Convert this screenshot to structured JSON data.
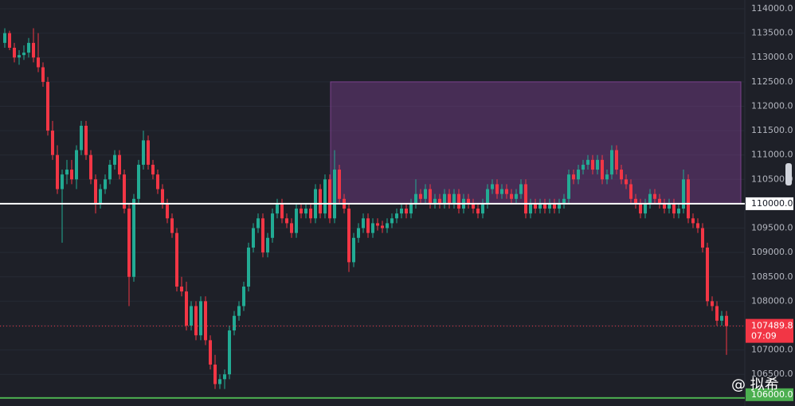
{
  "chart_data": {
    "type": "candlestick",
    "ylim": [
      105850,
      114180
    ],
    "yticks": [
      {
        "value": 106500,
        "label": "106500.0"
      },
      {
        "value": 107000,
        "label": "107000.0"
      },
      {
        "value": 107500,
        "label": "107500.0"
      },
      {
        "value": 108000,
        "label": "108000.0"
      },
      {
        "value": 108500,
        "label": "108500.0"
      },
      {
        "value": 109000,
        "label": "109000.0"
      },
      {
        "value": 109500,
        "label": "109500.0"
      },
      {
        "value": 110500,
        "label": "110500.0"
      },
      {
        "value": 111000,
        "label": "111000.0"
      },
      {
        "value": 111500,
        "label": "111500.0"
      },
      {
        "value": 112000,
        "label": "112000.0"
      },
      {
        "value": 112500,
        "label": "112500.0"
      },
      {
        "value": 113000,
        "label": "113000.0"
      },
      {
        "value": 113500,
        "label": "113500.0"
      },
      {
        "value": 114000,
        "label": "114000.0"
      }
    ],
    "grid": true,
    "up_color": "#22ab94",
    "down_color": "#f23645",
    "zone": {
      "top": 112500,
      "bottom": 110000,
      "color": "#7b3f8c"
    },
    "level_line": {
      "value": 110000,
      "label": "110000.0",
      "color": "#ffffff"
    },
    "support_line": {
      "value": 106000,
      "label": "106000.0",
      "color": "#4caf50"
    },
    "price_line": {
      "value": 107489.8,
      "countdown": "07:09",
      "color": "#f23645"
    },
    "watermark": "@ 拟希",
    "candles": [
      [
        113300,
        113600,
        113200,
        113500
      ],
      [
        113500,
        113550,
        113150,
        113200
      ],
      [
        113200,
        113300,
        112900,
        113000
      ],
      [
        113000,
        113150,
        112850,
        113050
      ],
      [
        113050,
        113250,
        112950,
        113100
      ],
      [
        113100,
        113400,
        113000,
        113300
      ],
      [
        113300,
        113600,
        112900,
        113000
      ],
      [
        113000,
        113500,
        112700,
        112800
      ],
      [
        112800,
        112900,
        112400,
        112500
      ],
      [
        112500,
        112600,
        111400,
        111500
      ],
      [
        111500,
        111700,
        110900,
        111000
      ],
      [
        111000,
        111200,
        110200,
        110300
      ],
      [
        110300,
        110700,
        109200,
        110600
      ],
      [
        110600,
        110900,
        110400,
        110700
      ],
      [
        110700,
        110900,
        110400,
        110500
      ],
      [
        110500,
        111200,
        110300,
        111100
      ],
      [
        111100,
        111700,
        111000,
        111600
      ],
      [
        111600,
        111700,
        110900,
        111000
      ],
      [
        111000,
        111100,
        110400,
        110500
      ],
      [
        110500,
        110600,
        109800,
        110000
      ],
      [
        110000,
        110400,
        109900,
        110300
      ],
      [
        110300,
        110600,
        110200,
        110500
      ],
      [
        110500,
        110900,
        110400,
        110800
      ],
      [
        110800,
        111100,
        110700,
        111000
      ],
      [
        111000,
        111100,
        110500,
        110600
      ],
      [
        110600,
        110700,
        109800,
        109900
      ],
      [
        109900,
        110000,
        107900,
        108500
      ],
      [
        108500,
        110200,
        108400,
        110100
      ],
      [
        110100,
        110900,
        110000,
        110800
      ],
      [
        110800,
        111500,
        110700,
        111300
      ],
      [
        111300,
        111400,
        110700,
        110800
      ],
      [
        110800,
        110900,
        110500,
        110600
      ],
      [
        110600,
        110700,
        110200,
        110300
      ],
      [
        110300,
        110400,
        109900,
        110000
      ],
      [
        110000,
        110100,
        109600,
        109700
      ],
      [
        109700,
        109800,
        109300,
        109400
      ],
      [
        109400,
        109500,
        108200,
        108300
      ],
      [
        108300,
        108500,
        108100,
        108200
      ],
      [
        108200,
        108400,
        107400,
        107500
      ],
      [
        107500,
        108000,
        107400,
        107900
      ],
      [
        107900,
        108000,
        107200,
        107300
      ],
      [
        107300,
        108100,
        107200,
        108000
      ],
      [
        108000,
        108100,
        107100,
        107200
      ],
      [
        107200,
        107300,
        106600,
        106700
      ],
      [
        106700,
        106900,
        106200,
        106300
      ],
      [
        106300,
        106500,
        106200,
        106400
      ],
      [
        106400,
        106600,
        106200,
        106500
      ],
      [
        106500,
        107500,
        106400,
        107400
      ],
      [
        107400,
        107800,
        107300,
        107700
      ],
      [
        107700,
        108000,
        107600,
        107900
      ],
      [
        107900,
        108400,
        107800,
        108300
      ],
      [
        108300,
        109200,
        108200,
        109100
      ],
      [
        109100,
        109600,
        109000,
        109500
      ],
      [
        109500,
        109800,
        109400,
        109700
      ],
      [
        109700,
        109800,
        108900,
        109000
      ],
      [
        109000,
        109400,
        108900,
        109300
      ],
      [
        109300,
        109900,
        109200,
        109800
      ],
      [
        109800,
        110100,
        109700,
        110000
      ],
      [
        110000,
        110100,
        109600,
        109700
      ],
      [
        109700,
        109800,
        109500,
        109600
      ],
      [
        109600,
        109700,
        109300,
        109400
      ],
      [
        109400,
        110000,
        109300,
        109900
      ],
      [
        109900,
        110000,
        109700,
        109800
      ],
      [
        109800,
        110000,
        109700,
        109900
      ],
      [
        109900,
        110000,
        109600,
        109700
      ],
      [
        109700,
        110400,
        109600,
        110300
      ],
      [
        110300,
        110400,
        109700,
        109800
      ],
      [
        109800,
        110600,
        109700,
        110500
      ],
      [
        110500,
        110600,
        109600,
        109700
      ],
      [
        109700,
        111100,
        109600,
        110700
      ],
      [
        110700,
        110800,
        110000,
        110100
      ],
      [
        110100,
        110200,
        109800,
        109900
      ],
      [
        109900,
        110000,
        108600,
        108800
      ],
      [
        108800,
        109400,
        108700,
        109300
      ],
      [
        109300,
        109600,
        109200,
        109500
      ],
      [
        109500,
        109800,
        109400,
        109700
      ],
      [
        109700,
        109800,
        109300,
        109400
      ],
      [
        109400,
        109700,
        109300,
        109600
      ],
      [
        109600,
        109700,
        109450,
        109550
      ],
      [
        109550,
        109650,
        109400,
        109500
      ],
      [
        109500,
        109700,
        109400,
        109600
      ],
      [
        109600,
        109800,
        109500,
        109700
      ],
      [
        109700,
        109900,
        109600,
        109800
      ],
      [
        109800,
        110000,
        109700,
        109900
      ],
      [
        109900,
        110000,
        109700,
        109800
      ],
      [
        109800,
        110100,
        109700,
        110000
      ],
      [
        110000,
        110500,
        109900,
        110200
      ],
      [
        110200,
        110300,
        110000,
        110100
      ],
      [
        110100,
        110400,
        110000,
        110300
      ],
      [
        110300,
        110400,
        109900,
        110000
      ],
      [
        110000,
        110200,
        109900,
        110100
      ],
      [
        110100,
        110200,
        109900,
        110000
      ],
      [
        110000,
        110300,
        109900,
        110200
      ],
      [
        110200,
        110300,
        109900,
        110000
      ],
      [
        110000,
        110300,
        109900,
        110200
      ],
      [
        110200,
        110300,
        109800,
        109900
      ],
      [
        109900,
        110200,
        109800,
        110100
      ],
      [
        110100,
        110200,
        109900,
        110000
      ],
      [
        110000,
        110100,
        109800,
        109900
      ],
      [
        109900,
        110000,
        109700,
        109800
      ],
      [
        109800,
        110100,
        109700,
        110000
      ],
      [
        110000,
        110400,
        109900,
        110300
      ],
      [
        110300,
        110500,
        110200,
        110400
      ],
      [
        110400,
        110500,
        110100,
        110200
      ],
      [
        110200,
        110400,
        110100,
        110300
      ],
      [
        110300,
        110400,
        110100,
        110200
      ],
      [
        110200,
        110300,
        110000,
        110100
      ],
      [
        110100,
        110300,
        110000,
        110200
      ],
      [
        110200,
        110500,
        110100,
        110400
      ],
      [
        110400,
        110500,
        109700,
        109800
      ],
      [
        109800,
        110100,
        109700,
        110000
      ],
      [
        110000,
        110100,
        109800,
        109900
      ],
      [
        109900,
        110100,
        109800,
        110000
      ],
      [
        110000,
        110100,
        109800,
        109900
      ],
      [
        109900,
        110100,
        109800,
        110000
      ],
      [
        110000,
        110100,
        109800,
        109900
      ],
      [
        109900,
        110100,
        109800,
        110000
      ],
      [
        110000,
        110200,
        109900,
        110100
      ],
      [
        110100,
        110700,
        110000,
        110600
      ],
      [
        110600,
        110700,
        110400,
        110500
      ],
      [
        110500,
        110800,
        110400,
        110700
      ],
      [
        110700,
        110900,
        110600,
        110800
      ],
      [
        110800,
        111000,
        110700,
        110900
      ],
      [
        110900,
        111000,
        110600,
        110700
      ],
      [
        110700,
        111000,
        110600,
        110900
      ],
      [
        110900,
        111000,
        110400,
        110500
      ],
      [
        110500,
        110700,
        110400,
        110600
      ],
      [
        110600,
        111200,
        110500,
        111100
      ],
      [
        111100,
        111200,
        110600,
        110700
      ],
      [
        110700,
        110800,
        110400,
        110500
      ],
      [
        110500,
        110600,
        110300,
        110400
      ],
      [
        110400,
        110500,
        110000,
        110100
      ],
      [
        110100,
        110200,
        109900,
        110000
      ],
      [
        110000,
        110100,
        109700,
        109800
      ],
      [
        109800,
        110100,
        109700,
        110000
      ],
      [
        110000,
        110300,
        109900,
        110200
      ],
      [
        110200,
        110300,
        110000,
        110100
      ],
      [
        110100,
        110200,
        109900,
        110000
      ],
      [
        110000,
        110100,
        109800,
        109900
      ],
      [
        109900,
        110100,
        109800,
        110000
      ],
      [
        110000,
        110100,
        109700,
        109800
      ],
      [
        109800,
        110000,
        109700,
        109900
      ],
      [
        109900,
        110700,
        109800,
        110500
      ],
      [
        110500,
        110600,
        109600,
        109700
      ],
      [
        109700,
        109800,
        109500,
        109600
      ],
      [
        109600,
        109700,
        109400,
        109500
      ],
      [
        109500,
        109600,
        109000,
        109100
      ],
      [
        109100,
        109200,
        107900,
        108000
      ],
      [
        108000,
        108100,
        107800,
        107900
      ],
      [
        107900,
        108000,
        107500,
        107600
      ],
      [
        107600,
        107800,
        107500,
        107700
      ],
      [
        107700,
        107800,
        106900,
        107489.8
      ]
    ]
  }
}
